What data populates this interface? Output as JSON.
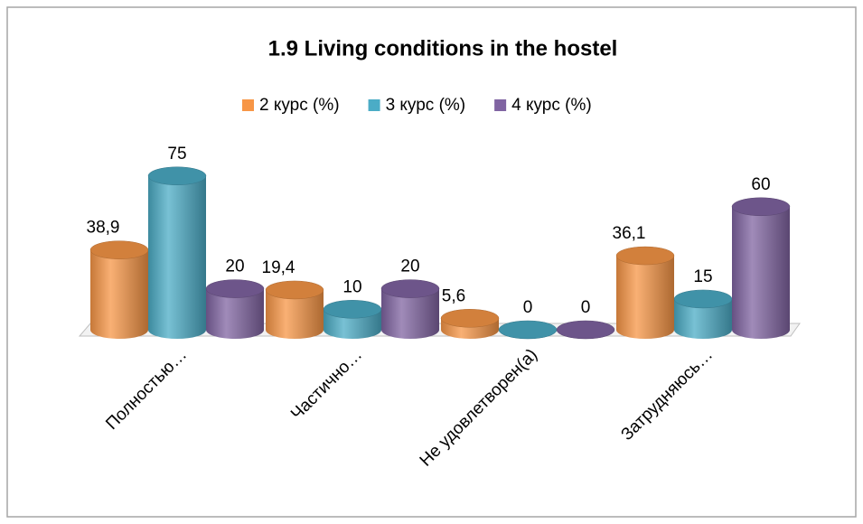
{
  "chart_data": {
    "type": "bar3d",
    "title": "1.9 Living conditions in the hostel",
    "categories": [
      "Полностью…",
      "Частично…",
      "Не удовлетворен(а)",
      "Затрудняюсь…"
    ],
    "series": [
      {
        "name": "2 курс (%)",
        "color": "#f79646",
        "values": [
          38.9,
          19.4,
          5.6,
          36.1
        ],
        "value_labels": [
          "38,9",
          "19,4",
          "5,6",
          "36,1"
        ]
      },
      {
        "name": "3 курс (%)",
        "color": "#4bacc6",
        "values": [
          75,
          10,
          0,
          15
        ]
      },
      {
        "name": "4 курс (%)",
        "color": "#8064a2",
        "values": [
          20,
          20,
          0,
          60
        ]
      }
    ],
    "legend": "top"
  }
}
